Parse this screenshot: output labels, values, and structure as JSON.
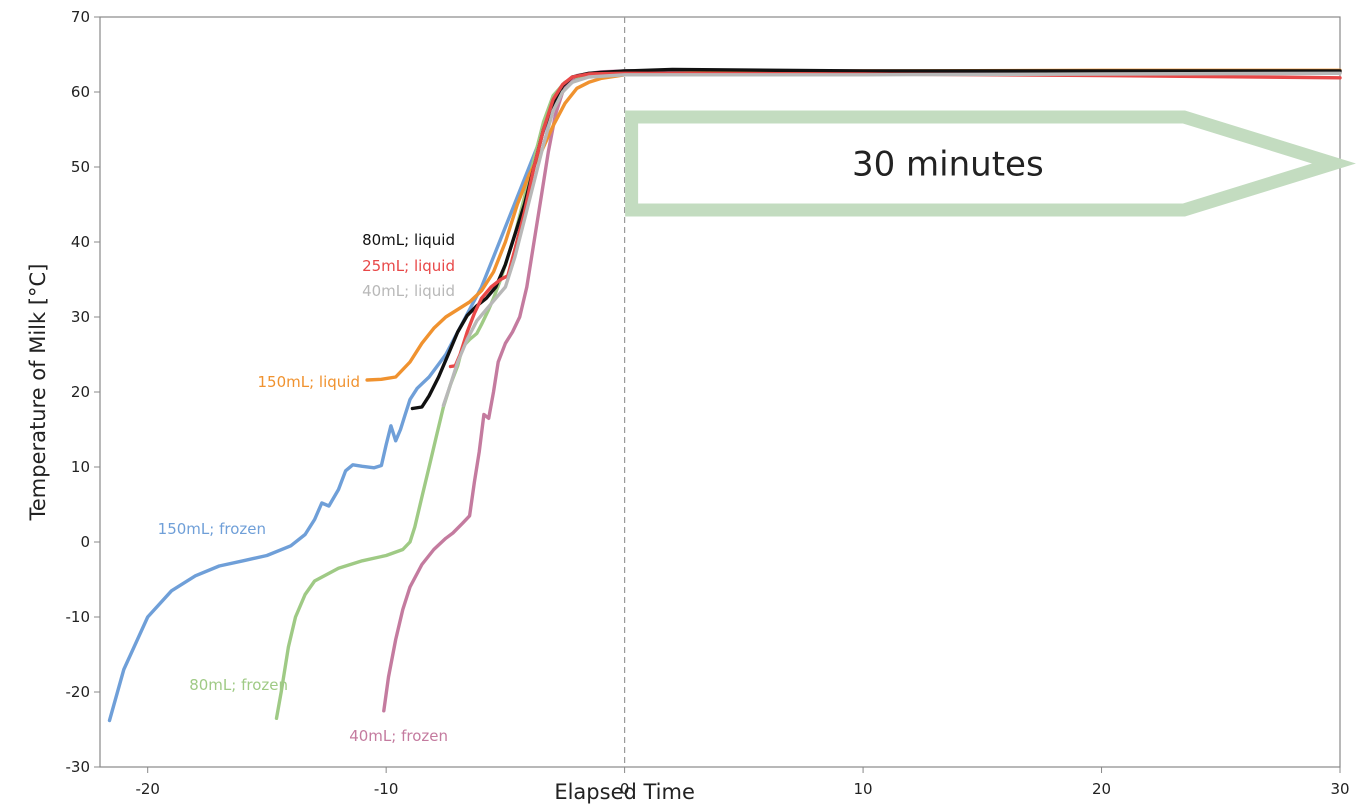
{
  "chart_data": {
    "type": "line",
    "xlabel": "Elapsed Time",
    "ylabel": "Temperature of Milk [°C]",
    "xlim": [
      -22,
      30
    ],
    "ylim": [
      -30,
      70
    ],
    "x_ticks": [
      -20,
      -10,
      0,
      10,
      20,
      30
    ],
    "y_ticks": [
      -30,
      -20,
      -10,
      0,
      10,
      20,
      30,
      40,
      50,
      60,
      70
    ],
    "x_tick_labels": [
      "-20",
      "-10",
      "0",
      "10",
      "20",
      "30"
    ],
    "y_tick_labels": [
      "-30",
      "-20",
      "-10",
      "0",
      "10",
      "20",
      "30",
      "40",
      "50",
      "60",
      "70"
    ],
    "reference_line_x": 0,
    "annotation": {
      "text": "30 minutes",
      "x_range": [
        0,
        30
      ],
      "color": "#c3dcc0"
    },
    "series": [
      {
        "name": "150mL; frozen",
        "color": "#6f9fd8",
        "points": [
          [
            -21.6,
            -23.8
          ],
          [
            -21,
            -17
          ],
          [
            -20,
            -10
          ],
          [
            -19,
            -6.5
          ],
          [
            -18,
            -4.5
          ],
          [
            -17,
            -3.2
          ],
          [
            -16,
            -2.5
          ],
          [
            -15,
            -1.8
          ],
          [
            -14,
            -0.5
          ],
          [
            -13.4,
            1
          ],
          [
            -13,
            3
          ],
          [
            -12.7,
            5.2
          ],
          [
            -12.4,
            4.8
          ],
          [
            -12,
            7
          ],
          [
            -11.7,
            9.5
          ],
          [
            -11.4,
            10.3
          ],
          [
            -11,
            10.1
          ],
          [
            -10.5,
            9.9
          ],
          [
            -10.2,
            10.2
          ],
          [
            -10,
            13
          ],
          [
            -9.8,
            15.5
          ],
          [
            -9.6,
            13.5
          ],
          [
            -9.4,
            15
          ],
          [
            -9.2,
            17
          ],
          [
            -9,
            19
          ],
          [
            -8.7,
            20.5
          ],
          [
            -8.2,
            22
          ],
          [
            -7.5,
            25
          ],
          [
            -7,
            28
          ],
          [
            -6.5,
            31
          ],
          [
            -6,
            34
          ],
          [
            -5.5,
            38
          ],
          [
            -5,
            42
          ],
          [
            -4.5,
            46
          ],
          [
            -4,
            50
          ],
          [
            -3.5,
            54
          ],
          [
            -3,
            58
          ],
          [
            -2.5,
            60.5
          ],
          [
            -2,
            61.8
          ],
          [
            -1,
            62.5
          ],
          [
            0,
            62.8
          ],
          [
            5,
            62.8
          ],
          [
            10,
            62.7
          ],
          [
            20,
            62.7
          ],
          [
            30,
            62.6
          ]
        ]
      },
      {
        "name": "80mL; frozen",
        "color": "#9fca85",
        "points": [
          [
            -14.6,
            -23.5
          ],
          [
            -14.4,
            -20
          ],
          [
            -14.1,
            -14
          ],
          [
            -13.8,
            -10
          ],
          [
            -13.4,
            -7
          ],
          [
            -13,
            -5.2
          ],
          [
            -12,
            -3.5
          ],
          [
            -11,
            -2.5
          ],
          [
            -10,
            -1.8
          ],
          [
            -9.3,
            -1
          ],
          [
            -9,
            0
          ],
          [
            -8.8,
            2
          ],
          [
            -8.5,
            6
          ],
          [
            -8.2,
            10
          ],
          [
            -7.9,
            14
          ],
          [
            -7.6,
            18
          ],
          [
            -7.3,
            21
          ],
          [
            -7,
            23.5
          ],
          [
            -6.8,
            26
          ],
          [
            -6.5,
            27
          ],
          [
            -6.2,
            27.8
          ],
          [
            -6,
            29
          ],
          [
            -5.7,
            31
          ],
          [
            -5.5,
            32.5
          ],
          [
            -5.2,
            35
          ],
          [
            -5,
            37
          ],
          [
            -4.6,
            41
          ],
          [
            -4.2,
            46
          ],
          [
            -3.8,
            51
          ],
          [
            -3.4,
            56
          ],
          [
            -3,
            59.5
          ],
          [
            -2.5,
            61.3
          ],
          [
            -2,
            62
          ],
          [
            -1,
            62.5
          ],
          [
            0,
            62.8
          ],
          [
            10,
            62.7
          ],
          [
            20,
            62.6
          ],
          [
            30,
            62.6
          ]
        ]
      },
      {
        "name": "40mL; frozen",
        "color": "#c47b9f",
        "points": [
          [
            -10.1,
            -22.5
          ],
          [
            -9.9,
            -18
          ],
          [
            -9.6,
            -13
          ],
          [
            -9.3,
            -9
          ],
          [
            -9,
            -6
          ],
          [
            -8.5,
            -3
          ],
          [
            -8,
            -1
          ],
          [
            -7.5,
            0.5
          ],
          [
            -7.2,
            1.2
          ],
          [
            -6.8,
            2.5
          ],
          [
            -6.5,
            3.5
          ],
          [
            -6.3,
            8
          ],
          [
            -6.1,
            12
          ],
          [
            -5.9,
            17
          ],
          [
            -5.7,
            16.5
          ],
          [
            -5.5,
            20
          ],
          [
            -5.3,
            24
          ],
          [
            -5,
            26.5
          ],
          [
            -4.7,
            28
          ],
          [
            -4.4,
            30
          ],
          [
            -4.1,
            34
          ],
          [
            -3.8,
            40
          ],
          [
            -3.5,
            46
          ],
          [
            -3.2,
            52
          ],
          [
            -2.9,
            57
          ],
          [
            -2.6,
            60
          ],
          [
            -2.3,
            61.5
          ],
          [
            -2,
            62.2
          ],
          [
            -1,
            62.7
          ],
          [
            0,
            62.8
          ],
          [
            10,
            62.8
          ],
          [
            20,
            62.7
          ],
          [
            30,
            62.6
          ]
        ]
      },
      {
        "name": "150mL; liquid",
        "color": "#f0922f",
        "points": [
          [
            -10.8,
            21.6
          ],
          [
            -10.2,
            21.7
          ],
          [
            -9.6,
            22
          ],
          [
            -9,
            24
          ],
          [
            -8.5,
            26.5
          ],
          [
            -8,
            28.5
          ],
          [
            -7.5,
            30
          ],
          [
            -7,
            31
          ],
          [
            -6.5,
            32
          ],
          [
            -6,
            33.5
          ],
          [
            -5.5,
            36
          ],
          [
            -5,
            40
          ],
          [
            -4.5,
            45
          ],
          [
            -4,
            49
          ],
          [
            -3.5,
            52
          ],
          [
            -3,
            55.5
          ],
          [
            -2.5,
            58.5
          ],
          [
            -2,
            60.5
          ],
          [
            -1.5,
            61.3
          ],
          [
            -1,
            61.8
          ],
          [
            0,
            62.3
          ],
          [
            5,
            62.7
          ],
          [
            10,
            62.8
          ],
          [
            20,
            62.9
          ],
          [
            30,
            62.9
          ]
        ]
      },
      {
        "name": "80mL; liquid",
        "color": "#111111",
        "points": [
          [
            -8.9,
            17.8
          ],
          [
            -8.5,
            18
          ],
          [
            -8.2,
            19.5
          ],
          [
            -7.8,
            22
          ],
          [
            -7.4,
            25
          ],
          [
            -7,
            28
          ],
          [
            -6.6,
            30.2
          ],
          [
            -6.2,
            31.5
          ],
          [
            -5.8,
            32.5
          ],
          [
            -5.4,
            34
          ],
          [
            -5,
            37
          ],
          [
            -4.6,
            41
          ],
          [
            -4.2,
            45
          ],
          [
            -3.8,
            50
          ],
          [
            -3.4,
            55
          ],
          [
            -3,
            58.5
          ],
          [
            -2.6,
            60.8
          ],
          [
            -2.2,
            62
          ],
          [
            -1.5,
            62.5
          ],
          [
            0,
            62.8
          ],
          [
            2,
            63
          ],
          [
            10,
            62.8
          ],
          [
            20,
            62.8
          ],
          [
            30,
            62.8
          ]
        ]
      },
      {
        "name": "25mL; liquid",
        "color": "#e84848",
        "points": [
          [
            -7.3,
            23.4
          ],
          [
            -7.1,
            23.5
          ],
          [
            -6.9,
            25
          ],
          [
            -6.6,
            28
          ],
          [
            -6.3,
            30.5
          ],
          [
            -6,
            32.5
          ],
          [
            -5.6,
            34
          ],
          [
            -5.2,
            35
          ],
          [
            -4.9,
            35.5
          ],
          [
            -4.6,
            39
          ],
          [
            -4.2,
            44
          ],
          [
            -3.8,
            50
          ],
          [
            -3.4,
            55
          ],
          [
            -3,
            59
          ],
          [
            -2.6,
            61
          ],
          [
            -2.2,
            62
          ],
          [
            -1.5,
            62.4
          ],
          [
            0,
            62.5
          ],
          [
            10,
            62.4
          ],
          [
            20,
            62.2
          ],
          [
            30,
            61.9
          ]
        ]
      },
      {
        "name": "40mL; liquid",
        "color": "#b8b8b8",
        "points": [
          [
            -7.6,
            18.2
          ],
          [
            -7.3,
            21
          ],
          [
            -7,
            24
          ],
          [
            -6.6,
            27
          ],
          [
            -6.2,
            29.5
          ],
          [
            -5.8,
            31
          ],
          [
            -5.4,
            32.5
          ],
          [
            -5,
            34
          ],
          [
            -4.6,
            38
          ],
          [
            -4.2,
            43
          ],
          [
            -3.8,
            48
          ],
          [
            -3.4,
            53
          ],
          [
            -3,
            57.5
          ],
          [
            -2.6,
            60
          ],
          [
            -2.2,
            61.3
          ],
          [
            -1.5,
            62
          ],
          [
            0,
            62.3
          ],
          [
            10,
            62.3
          ],
          [
            20,
            62.4
          ],
          [
            30,
            62.5
          ]
        ]
      }
    ]
  }
}
